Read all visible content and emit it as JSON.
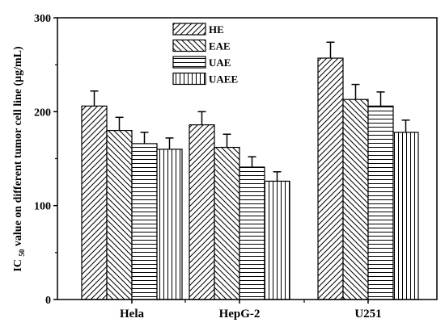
{
  "chart_data": {
    "type": "bar",
    "categories": [
      "Hela",
      "HepG-2",
      "U251"
    ],
    "series": [
      {
        "name": "HE",
        "values": [
          206,
          186,
          257
        ],
        "errors": [
          16,
          14,
          17
        ],
        "pattern": "diagonal-up"
      },
      {
        "name": "EAE",
        "values": [
          180,
          162,
          213
        ],
        "errors": [
          14,
          14,
          16
        ],
        "pattern": "diagonal-down"
      },
      {
        "name": "UAE",
        "values": [
          166,
          141,
          206
        ],
        "errors": [
          12,
          11,
          15
        ],
        "pattern": "horizontal"
      },
      {
        "name": "UAEE",
        "values": [
          160,
          126,
          178
        ],
        "errors": [
          12,
          10,
          13
        ],
        "pattern": "vertical"
      }
    ],
    "ylabel": {
      "prefix": "IC",
      "subscript": "50",
      "suffix": " value on different tumor cell line (μg/mL)"
    },
    "xlabel": "",
    "ylim": [
      0,
      300
    ],
    "yticks": [
      "0",
      "100",
      "200",
      "300"
    ],
    "legend": "top-center",
    "grid": false
  }
}
